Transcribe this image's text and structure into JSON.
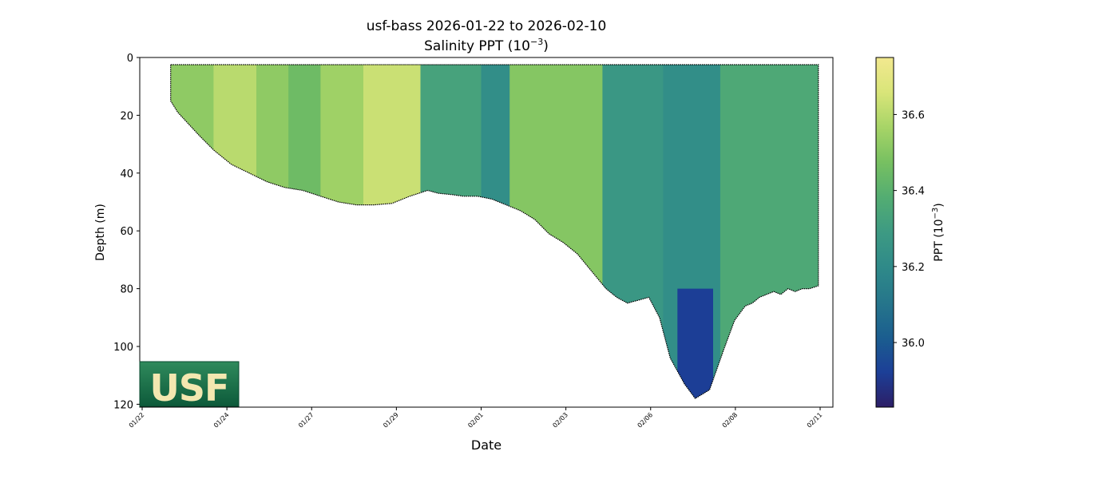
{
  "chart_data": {
    "type": "heatmap",
    "title": "usf-bass 2026-01-22 to 2026-02-10",
    "subtitle_prefix": "Salinity PPT (10",
    "subtitle_exp": "−3",
    "subtitle_suffix": ")",
    "xlabel": "Date",
    "ylabel": "Depth (m)",
    "ylim": [
      121,
      0
    ],
    "y_ticks": [
      "0",
      "20",
      "40",
      "60",
      "80",
      "100",
      "120"
    ],
    "y_tick_values": [
      0,
      20,
      40,
      60,
      80,
      100,
      120
    ],
    "x_ticks": [
      "01/22",
      "01/24",
      "01/27",
      "01/29",
      "02/01",
      "02/03",
      "02/06",
      "02/08",
      "02/11"
    ],
    "colorbar": {
      "label_prefix": "PPT (10",
      "label_exp": "−3",
      "label_suffix": ")",
      "range": [
        35.83,
        36.75
      ],
      "ticks": [
        "36.0",
        "36.2",
        "36.4",
        "36.6"
      ],
      "tick_values": [
        36.0,
        36.2,
        36.4,
        36.6
      ],
      "colormap": [
        "#2c1e66",
        "#1c3f97",
        "#1b5e8f",
        "#26768b",
        "#2f8a89",
        "#3d9a83",
        "#53ad72",
        "#77c061",
        "#a7d467",
        "#d9e579",
        "#f2e88f"
      ]
    },
    "seabed_depth_profile": {
      "day_offset": [
        0.8,
        1.0,
        1.3,
        1.6,
        2.0,
        2.5,
        3.0,
        3.5,
        4.0,
        4.5,
        5.0,
        5.5,
        6.0,
        6.5,
        7.0,
        7.5,
        8.0,
        8.3,
        8.7,
        9.0,
        9.4,
        9.8,
        10.2,
        10.6,
        11.0,
        11.4,
        11.8,
        12.2,
        12.6,
        13.0,
        13.3,
        13.6,
        13.9,
        14.2,
        14.5,
        14.8,
        15.2,
        15.5,
        15.9,
        16.3,
        16.6,
        16.9,
        17.1,
        17.3,
        17.5,
        17.7,
        17.9,
        18.1,
        18.3,
        18.5,
        18.7,
        18.95
      ],
      "depth_m": [
        15,
        19,
        23,
        27,
        32,
        37,
        40,
        43,
        45,
        46,
        48,
        50,
        51,
        51,
        50.5,
        48,
        46,
        47,
        47.5,
        48,
        48,
        49,
        51,
        53,
        56,
        61,
        64,
        68,
        74,
        80,
        83,
        85,
        84,
        83,
        90,
        104,
        113,
        118,
        115,
        101,
        91,
        86,
        85,
        83,
        82,
        81,
        82,
        80,
        81,
        80,
        80,
        79
      ]
    },
    "vertical_bands": [
      {
        "from": 0.8,
        "to": 2.0,
        "value": 36.52
      },
      {
        "from": 2.0,
        "to": 3.2,
        "value": 36.6
      },
      {
        "from": 3.2,
        "to": 4.1,
        "value": 36.52
      },
      {
        "from": 4.1,
        "to": 5.0,
        "value": 36.45
      },
      {
        "from": 5.0,
        "to": 6.2,
        "value": 36.55
      },
      {
        "from": 6.2,
        "to": 7.8,
        "value": 36.63
      },
      {
        "from": 7.8,
        "to": 9.5,
        "value": 36.33
      },
      {
        "from": 9.5,
        "to": 10.3,
        "value": 36.22
      },
      {
        "from": 10.3,
        "to": 12.9,
        "value": 36.5
      },
      {
        "from": 12.9,
        "to": 14.6,
        "value": 36.27
      },
      {
        "from": 14.6,
        "to": 16.2,
        "value": 36.22
      },
      {
        "from": 16.2,
        "to": 18.95,
        "value": 36.36
      }
    ]
  }
}
